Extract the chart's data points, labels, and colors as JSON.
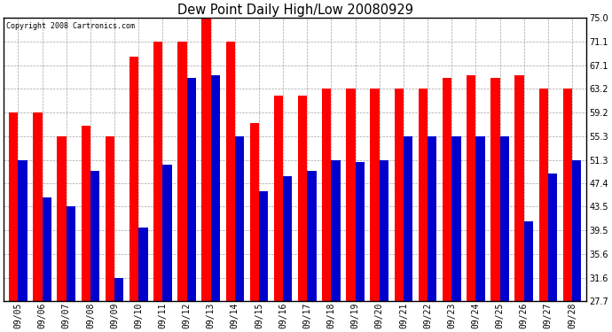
{
  "title": "Dew Point Daily High/Low 20080929",
  "copyright": "Copyright 2008 Cartronics.com",
  "dates": [
    "09/05",
    "09/06",
    "09/07",
    "09/08",
    "09/09",
    "09/10",
    "09/11",
    "09/12",
    "09/13",
    "09/14",
    "09/15",
    "09/16",
    "09/17",
    "09/18",
    "09/19",
    "09/20",
    "09/21",
    "09/22",
    "09/23",
    "09/24",
    "09/25",
    "09/26",
    "09/27",
    "09/28"
  ],
  "high": [
    59.2,
    59.2,
    55.3,
    57.0,
    55.3,
    68.5,
    71.1,
    71.1,
    75.0,
    71.1,
    57.5,
    62.0,
    62.0,
    63.2,
    63.2,
    63.2,
    63.2,
    63.2,
    65.0,
    65.5,
    65.0,
    65.5,
    63.2,
    63.2
  ],
  "low": [
    51.3,
    45.0,
    43.5,
    49.5,
    31.6,
    40.0,
    50.5,
    65.0,
    65.5,
    55.3,
    46.0,
    48.5,
    49.5,
    51.3,
    51.0,
    51.3,
    55.3,
    55.3,
    55.3,
    55.3,
    55.3,
    41.0,
    49.0,
    51.3
  ],
  "yticks": [
    27.7,
    31.6,
    35.6,
    39.5,
    43.5,
    47.4,
    51.3,
    55.3,
    59.2,
    63.2,
    67.1,
    71.1,
    75.0
  ],
  "ymin": 27.7,
  "ymax": 75.0,
  "bar_width": 0.38,
  "high_color": "#ff0000",
  "low_color": "#0000cc",
  "bg_color": "#ffffff",
  "plot_bg_color": "#ffffff",
  "grid_color": "#999999",
  "copyright_color": "#000000",
  "title_color": "#000000"
}
